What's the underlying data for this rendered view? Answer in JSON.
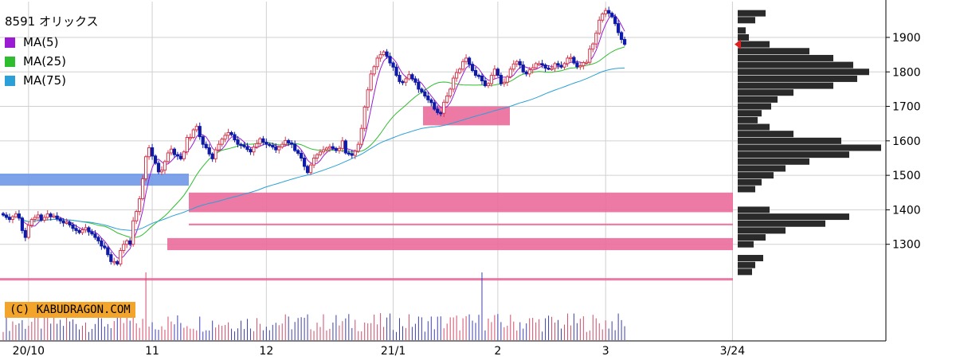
{
  "title": "8591 オリックス",
  "legend": [
    {
      "label": "MA(5)",
      "color": "#9a1bd2"
    },
    {
      "label": "MA(25)",
      "color": "#2ebd2e"
    },
    {
      "label": "MA(75)",
      "color": "#2ba0d8"
    }
  ],
  "copyright": "(C) KABUDRAGON.COM",
  "chart_data": {
    "type": "candlestick",
    "y_ticks": [
      1300,
      1400,
      1500,
      1600,
      1700,
      1800,
      1900
    ],
    "y_range": [
      1200,
      1990
    ],
    "x_ticks": [
      {
        "label": "20/10",
        "index": 8
      },
      {
        "label": "11",
        "index": 47
      },
      {
        "label": "12",
        "index": 83
      },
      {
        "label": "21/1",
        "index": 123
      },
      {
        "label": "2",
        "index": 156
      },
      {
        "label": "3",
        "index": 190
      },
      {
        "label": "3/24",
        "index": 230
      }
    ],
    "series": [
      {
        "name": "MA(5)",
        "color": "#9a1bd2"
      },
      {
        "name": "MA(25)",
        "color": "#2ebd2e"
      },
      {
        "name": "MA(75)",
        "color": "#2ba0d8"
      }
    ],
    "closes": [
      1385,
      1378,
      1372,
      1380,
      1388,
      1376,
      1340,
      1320,
      1355,
      1372,
      1378,
      1385,
      1370,
      1378,
      1388,
      1380,
      1382,
      1374,
      1368,
      1362,
      1364,
      1356,
      1346,
      1340,
      1334,
      1342,
      1348,
      1336,
      1330,
      1320,
      1310,
      1295,
      1290,
      1270,
      1250,
      1250,
      1243,
      1282,
      1300,
      1310,
      1300,
      1368,
      1395,
      1432,
      1490,
      1554,
      1580,
      1556,
      1535,
      1510,
      1515,
      1540,
      1565,
      1576,
      1560,
      1556,
      1548,
      1568,
      1610,
      1610,
      1632,
      1642,
      1612,
      1590,
      1580,
      1562,
      1548,
      1574,
      1590,
      1605,
      1616,
      1624,
      1618,
      1603,
      1590,
      1588,
      1583,
      1575,
      1568,
      1582,
      1592,
      1606,
      1596,
      1590,
      1587,
      1582,
      1574,
      1582,
      1590,
      1601,
      1594,
      1590,
      1572,
      1564,
      1550,
      1526,
      1508,
      1530,
      1550,
      1560,
      1568,
      1574,
      1579,
      1583,
      1578,
      1572,
      1578,
      1600,
      1565,
      1563,
      1558,
      1570,
      1590,
      1636,
      1698,
      1748,
      1794,
      1815,
      1840,
      1850,
      1858,
      1845,
      1826,
      1814,
      1790,
      1772,
      1770,
      1780,
      1792,
      1780,
      1770,
      1750,
      1742,
      1730,
      1719,
      1711,
      1692,
      1682,
      1680,
      1712,
      1730,
      1750,
      1782,
      1798,
      1808,
      1830,
      1840,
      1822,
      1804,
      1790,
      1788,
      1774,
      1760,
      1766,
      1790,
      1808,
      1790,
      1766,
      1770,
      1786,
      1808,
      1823,
      1830,
      1820,
      1800,
      1794,
      1806,
      1812,
      1824,
      1824,
      1820,
      1811,
      1810,
      1810,
      1824,
      1819,
      1814,
      1824,
      1840,
      1842,
      1826,
      1815,
      1818,
      1827,
      1828,
      1866,
      1881,
      1912,
      1950,
      1968,
      1978,
      1970,
      1960,
      1940,
      1914,
      1894,
      1880
    ],
    "volume_spikes": [
      {
        "index": 45,
        "rel": 1.0
      },
      {
        "index": 151,
        "rel": 1.0
      }
    ],
    "resistance_bands": [
      {
        "from": 1470,
        "to": 1505,
        "color": "#6f98e8",
        "x0": 0,
        "x1": 237
      },
      {
        "from": 1393,
        "to": 1450,
        "color": "#ea6b9a",
        "x0": 237,
        "x1": 920
      },
      {
        "from": 1355,
        "to": 1360,
        "color": "#ea6b9a",
        "x0": 237,
        "x1": 920
      },
      {
        "from": 1283,
        "to": 1318,
        "color": "#ea6b9a",
        "x0": 210,
        "x1": 920
      },
      {
        "from": 1195,
        "to": 1202,
        "color": "#ea6b9a",
        "x0": 0,
        "x1": 920
      },
      {
        "from": 1645,
        "to": 1700,
        "color": "#ea6b9a",
        "x0": 531,
        "x1": 640
      }
    ],
    "volume_profile": [
      {
        "price": 1970,
        "len": 35
      },
      {
        "price": 1950,
        "len": 22
      },
      {
        "price": 1920,
        "len": 10
      },
      {
        "price": 1900,
        "len": 14
      },
      {
        "price": 1880,
        "len": 40
      },
      {
        "price": 1860,
        "len": 90
      },
      {
        "price": 1840,
        "len": 120
      },
      {
        "price": 1820,
        "len": 145
      },
      {
        "price": 1800,
        "len": 165
      },
      {
        "price": 1780,
        "len": 150
      },
      {
        "price": 1760,
        "len": 120
      },
      {
        "price": 1740,
        "len": 70
      },
      {
        "price": 1720,
        "len": 50
      },
      {
        "price": 1700,
        "len": 42
      },
      {
        "price": 1680,
        "len": 30
      },
      {
        "price": 1660,
        "len": 25
      },
      {
        "price": 1640,
        "len": 40
      },
      {
        "price": 1620,
        "len": 70
      },
      {
        "price": 1600,
        "len": 130
      },
      {
        "price": 1580,
        "len": 180
      },
      {
        "price": 1560,
        "len": 140
      },
      {
        "price": 1540,
        "len": 90
      },
      {
        "price": 1520,
        "len": 60
      },
      {
        "price": 1500,
        "len": 45
      },
      {
        "price": 1480,
        "len": 30
      },
      {
        "price": 1460,
        "len": 22
      },
      {
        "price": 1400,
        "len": 40
      },
      {
        "price": 1380,
        "len": 140
      },
      {
        "price": 1360,
        "len": 110
      },
      {
        "price": 1340,
        "len": 60
      },
      {
        "price": 1320,
        "len": 35
      },
      {
        "price": 1300,
        "len": 20
      },
      {
        "price": 1260,
        "len": 32
      },
      {
        "price": 1240,
        "len": 22
      },
      {
        "price": 1220,
        "len": 18
      }
    ],
    "last_price_marker": 1880
  }
}
